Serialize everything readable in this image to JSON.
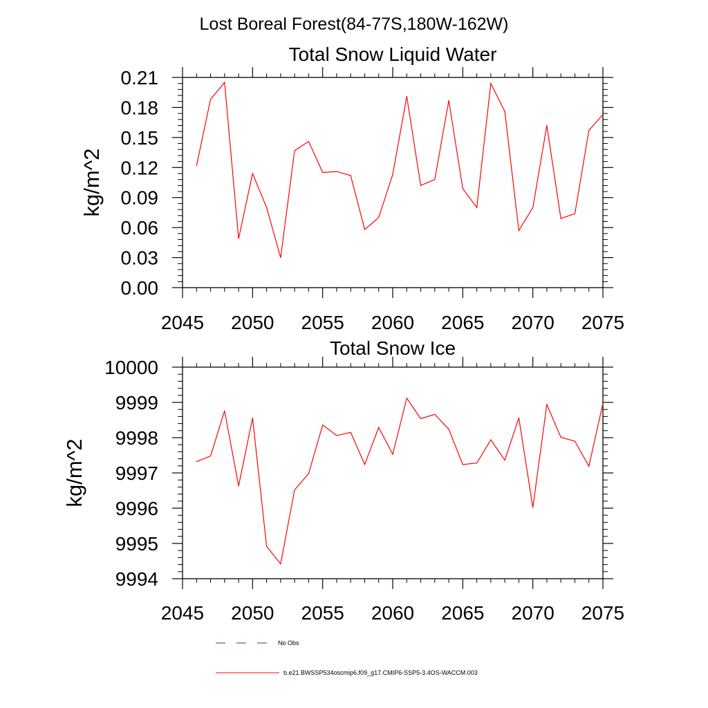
{
  "figure_title": "Lost Boreal Forest(84-77S,180W-162W)",
  "legend": {
    "no_obs_label": "No Obs",
    "model_label": "b.e21.BWSSP534oscmip6.f09_g17.CMIP6-SSP5-3.4OS-WACCM.003",
    "no_obs_color": "#2f3a8f",
    "model_color": "#ff0000"
  },
  "chart_data": [
    {
      "type": "line",
      "title": "Total Snow Liquid Water",
      "xlabel": "",
      "ylabel": "kg/m^2",
      "xlim": [
        2045,
        2075
      ],
      "ylim": [
        0,
        0.21
      ],
      "xticks": [
        2045,
        2050,
        2055,
        2060,
        2065,
        2070,
        2075
      ],
      "xtick_labels": [
        "2045",
        "2050",
        "2055",
        "2060",
        "2065",
        "2070",
        "2075"
      ],
      "yticks": [
        0,
        0.03,
        0.06,
        0.09,
        0.12,
        0.15,
        0.18,
        0.21
      ],
      "ytick_labels": [
        "0.00",
        "0.03",
        "0.06",
        "0.09",
        "0.12",
        "0.15",
        "0.18",
        "0.21"
      ],
      "grid": false,
      "series": [
        {
          "name": "b.e21.BWSSP534oscmip6.f09_g17.CMIP6-SSP5-3.4OS-WACCM.003",
          "color": "#ff0000",
          "x": [
            2046,
            2047,
            2048,
            2049,
            2050,
            2051,
            2052,
            2053,
            2054,
            2055,
            2056,
            2057,
            2058,
            2059,
            2060,
            2061,
            2062,
            2063,
            2064,
            2065,
            2066,
            2067,
            2068,
            2069,
            2070,
            2071,
            2072,
            2073,
            2074,
            2075
          ],
          "values": [
            0.122,
            0.188,
            0.205,
            0.049,
            0.114,
            0.08,
            0.03,
            0.137,
            0.146,
            0.115,
            0.116,
            0.112,
            0.058,
            0.07,
            0.113,
            0.191,
            0.102,
            0.108,
            0.187,
            0.099,
            0.08,
            0.204,
            0.176,
            0.057,
            0.08,
            0.162,
            0.069,
            0.074,
            0.157,
            0.173
          ]
        }
      ]
    },
    {
      "type": "line",
      "title": "Total Snow Ice",
      "xlabel": "",
      "ylabel": "kg/m^2",
      "xlim": [
        2045,
        2075
      ],
      "ylim": [
        9994,
        10000
      ],
      "xticks": [
        2045,
        2050,
        2055,
        2060,
        2065,
        2070,
        2075
      ],
      "xtick_labels": [
        "2045",
        "2050",
        "2055",
        "2060",
        "2065",
        "2070",
        "2075"
      ],
      "yticks": [
        9994,
        9995,
        9996,
        9997,
        9998,
        9999,
        10000
      ],
      "ytick_labels": [
        "9994",
        "9995",
        "9996",
        "9997",
        "9998",
        "9999",
        "10000"
      ],
      "grid": false,
      "series": [
        {
          "name": "b.e21.BWSSP534oscmip6.f09_g17.CMIP6-SSP5-3.4OS-WACCM.003",
          "color": "#ff0000",
          "x": [
            2046,
            2047,
            2048,
            2049,
            2050,
            2051,
            2052,
            2053,
            2054,
            2055,
            2056,
            2057,
            2058,
            2059,
            2060,
            2061,
            2062,
            2063,
            2064,
            2065,
            2066,
            2067,
            2068,
            2069,
            2070,
            2071,
            2072,
            2073,
            2074,
            2075
          ],
          "values": [
            9997.32,
            9997.48,
            9998.76,
            9996.63,
            9998.56,
            9994.92,
            9994.42,
            9996.52,
            9996.98,
            9998.36,
            9998.06,
            9998.15,
            9997.24,
            9998.29,
            9997.53,
            9999.12,
            9998.54,
            9998.66,
            9998.24,
            9997.24,
            9997.28,
            9997.94,
            9997.36,
            9998.56,
            9996.02,
            9998.94,
            9998.01,
            9997.9,
            9997.19,
            9998.97
          ]
        }
      ]
    }
  ]
}
